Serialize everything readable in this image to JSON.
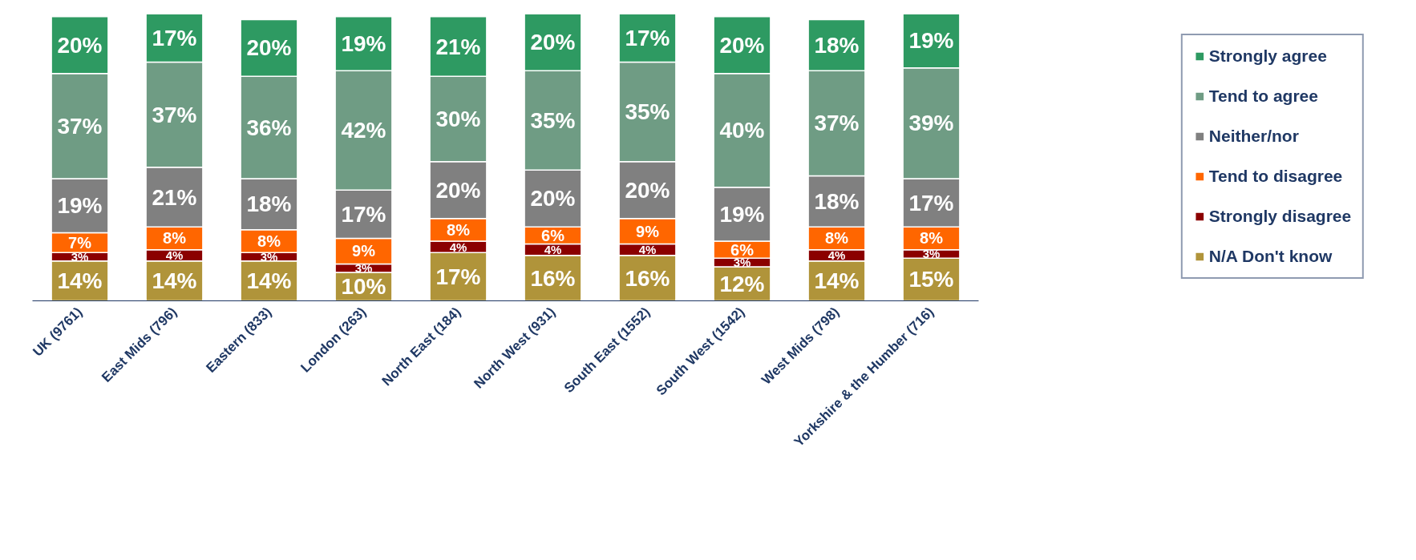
{
  "chart_data": {
    "type": "bar",
    "stacked": true,
    "legend": "right",
    "grid": false,
    "tick_labels": "x",
    "categories": [
      "UK (9761)",
      "East Mids (796)",
      "Eastern (833)",
      "London (263)",
      "North East (184)",
      "North West (931)",
      "South East (1552)",
      "South West (1542)",
      "West Mids (798)",
      "Yorkshire & the Humber (716)"
    ],
    "series": [
      {
        "name": "N/A Don't know",
        "color": "#b0943a",
        "values": [
          14,
          14,
          14,
          10,
          17,
          16,
          16,
          12,
          14,
          15
        ],
        "value_labels": [
          "14%",
          "14%",
          "14%",
          "10%",
          "17%",
          "16%",
          "16%",
          "12%",
          "14%",
          "15%"
        ]
      },
      {
        "name": "Strongly disagree",
        "color": "#8b0000",
        "values": [
          3,
          4,
          3,
          3,
          4,
          4,
          4,
          3,
          4,
          3
        ],
        "value_labels": [
          "3%",
          "4%",
          "3%",
          "3%",
          "4%",
          "4%",
          "4%",
          "3%",
          "4%",
          "3%"
        ]
      },
      {
        "name": "Tend to disagree",
        "color": "#ff6600",
        "values": [
          7,
          8,
          8,
          9,
          8,
          6,
          9,
          6,
          8,
          8
        ],
        "value_labels": [
          "7%",
          "8%",
          "8%",
          "9%",
          "8%",
          "6%",
          "9%",
          "6%",
          "8%",
          "8%"
        ]
      },
      {
        "name": "Neither/nor",
        "color": "#808080",
        "values": [
          19,
          21,
          18,
          17,
          20,
          20,
          20,
          19,
          18,
          17
        ],
        "value_labels": [
          "19%",
          "21%",
          "18%",
          "17%",
          "20%",
          "20%",
          "20%",
          "19%",
          "18%",
          "17%"
        ]
      },
      {
        "name": "Tend to agree",
        "color": "#6f9c84",
        "values": [
          37,
          37,
          36,
          42,
          30,
          35,
          35,
          40,
          37,
          39
        ],
        "value_labels": [
          "37%",
          "37%",
          "36%",
          "42%",
          "30%",
          "35%",
          "35%",
          "40%",
          "37%",
          "39%"
        ]
      },
      {
        "name": "Strongly agree",
        "color": "#2e9a62",
        "values": [
          20,
          17,
          20,
          19,
          21,
          20,
          17,
          20,
          18,
          19
        ],
        "value_labels": [
          "20%",
          "17%",
          "20%",
          "19%",
          "21%",
          "20%",
          "17%",
          "20%",
          "18%",
          "19%"
        ]
      }
    ]
  }
}
